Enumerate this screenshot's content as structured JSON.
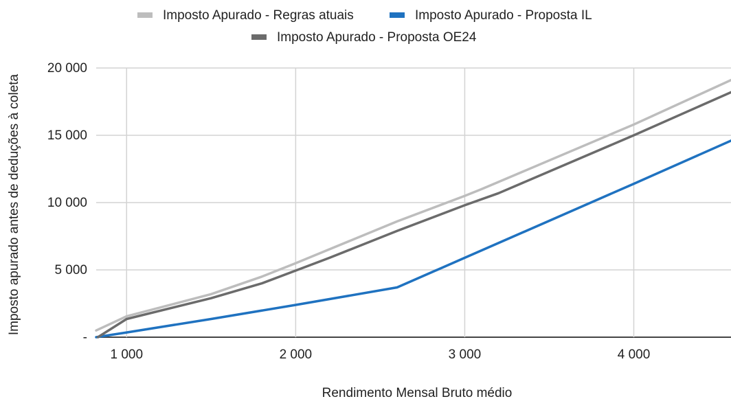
{
  "chart_data": {
    "type": "line",
    "title": "",
    "xlabel": "Rendimento Mensal Bruto médio",
    "ylabel": "Imposto apurado antes de deduções à coleta",
    "xlim": [
      820,
      4575
    ],
    "ylim": [
      0,
      20000
    ],
    "x_ticks": [
      1000,
      2000,
      3000,
      4000
    ],
    "x_tick_labels": [
      "1 000",
      "2 000",
      "3 000",
      "4 000"
    ],
    "y_ticks": [
      0,
      5000,
      10000,
      15000,
      20000
    ],
    "y_tick_labels": [
      "-",
      "5 000",
      "10 000",
      "15 000",
      "20 000"
    ],
    "grid": true,
    "legend_position": "top",
    "series": [
      {
        "name": "Imposto Apurado - Regras atuais",
        "color": "#bdbdbd",
        "points": [
          [
            820,
            500
          ],
          [
            1000,
            1550
          ],
          [
            1500,
            3200
          ],
          [
            1800,
            4500
          ],
          [
            2000,
            5500
          ],
          [
            2600,
            8600
          ],
          [
            3000,
            10500
          ],
          [
            3100,
            11000
          ],
          [
            4000,
            15800
          ],
          [
            4575,
            19100
          ]
        ]
      },
      {
        "name": "Imposto Apurado - Proposta IL",
        "color": "#1f72c0",
        "points": [
          [
            820,
            0
          ],
          [
            1000,
            350
          ],
          [
            1500,
            1350
          ],
          [
            2000,
            2400
          ],
          [
            2600,
            3700
          ],
          [
            3000,
            5900
          ],
          [
            4000,
            11400
          ],
          [
            4575,
            14600
          ]
        ]
      },
      {
        "name": "Imposto Apurado - Proposta OE24",
        "color": "#6b6b6b",
        "points": [
          [
            830,
            0
          ],
          [
            1000,
            1350
          ],
          [
            1500,
            2900
          ],
          [
            1800,
            4000
          ],
          [
            2000,
            4950
          ],
          [
            2200,
            5900
          ],
          [
            2600,
            7900
          ],
          [
            3000,
            9800
          ],
          [
            3200,
            10700
          ],
          [
            4000,
            15000
          ],
          [
            4575,
            18200
          ]
        ]
      }
    ]
  }
}
